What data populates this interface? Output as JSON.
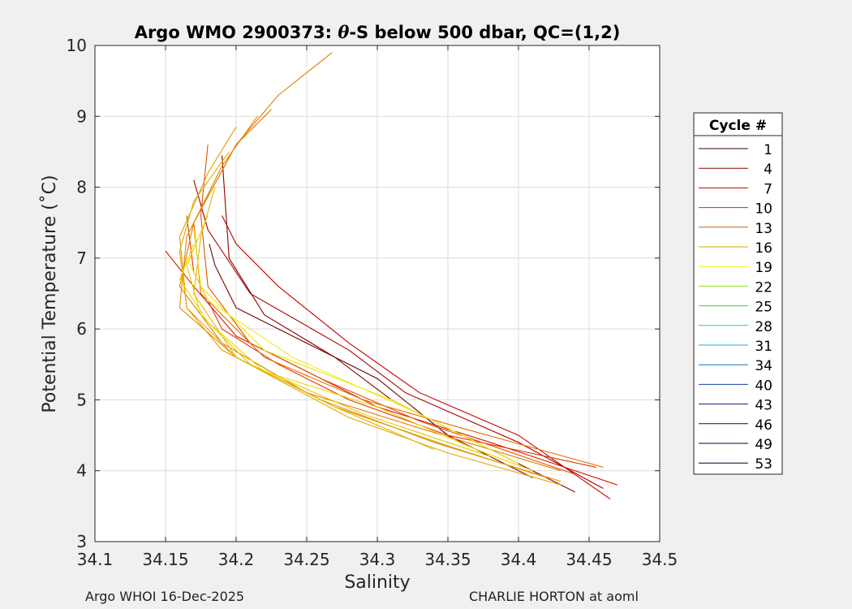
{
  "chart_data": {
    "type": "line",
    "title_prefix": "Argo WMO 2900373: ",
    "title_theta": "θ",
    "title_suffix": "-S below 500 dbar,  QC=(1,2)",
    "xlabel": "Salinity",
    "ylabel": "Potential Temperature (˚C)",
    "xlim": [
      34.1,
      34.5
    ],
    "ylim": [
      3,
      10
    ],
    "xticks": [
      "34.1",
      "34.15",
      "34.2",
      "34.25",
      "34.3",
      "34.35",
      "34.4",
      "34.45",
      "34.5"
    ],
    "yticks": [
      "3",
      "4",
      "5",
      "6",
      "7",
      "8",
      "9",
      "10"
    ],
    "grid": true,
    "legend_title": "Cycle #",
    "legend_position": "right",
    "series": [
      {
        "name": "1",
        "color": "#6e0000",
        "x": [
          34.181,
          34.185,
          34.2,
          34.26,
          34.3,
          34.35,
          34.41
        ],
        "y": [
          7.2,
          6.9,
          6.3,
          5.7,
          5.3,
          4.5,
          3.9
        ]
      },
      {
        "name": "4",
        "color": "#8c0000",
        "x": [
          34.19,
          34.195,
          34.22,
          34.27,
          34.31,
          34.37,
          34.44
        ],
        "y": [
          8.45,
          7.0,
          6.2,
          5.6,
          5.0,
          4.4,
          3.7
        ]
      },
      {
        "name": "7",
        "color": "#a80000",
        "x": [
          34.17,
          34.18,
          34.21,
          34.28,
          34.32,
          34.4,
          34.46
        ],
        "y": [
          8.1,
          7.4,
          6.5,
          5.7,
          5.1,
          4.4,
          3.75
        ]
      },
      {
        "name": "10",
        "color": "#c20000",
        "x": [
          34.19,
          34.2,
          34.23,
          34.28,
          34.33,
          34.4,
          34.465
        ],
        "y": [
          7.6,
          7.2,
          6.6,
          5.8,
          5.1,
          4.5,
          3.6
        ]
      },
      {
        "name": "13",
        "color": "#d81800",
        "x": [
          34.15,
          34.17,
          34.2,
          34.25,
          34.3,
          34.38,
          34.47
        ],
        "y": [
          7.1,
          6.6,
          5.9,
          5.4,
          4.9,
          4.4,
          3.8
        ]
      },
      {
        "name": "16",
        "color": "#e43600",
        "x": [
          34.165,
          34.17,
          34.19,
          34.23,
          34.28,
          34.35,
          34.455
        ],
        "y": [
          7.6,
          6.8,
          6.0,
          5.5,
          5.0,
          4.5,
          4.05
        ]
      },
      {
        "name": "19",
        "color": "#e45200",
        "x": [
          34.18,
          34.175,
          34.18,
          34.21,
          34.26,
          34.33,
          34.44
        ],
        "y": [
          8.6,
          7.6,
          6.6,
          5.8,
          5.3,
          4.7,
          3.95
        ]
      },
      {
        "name": "22",
        "color": "#e66c00",
        "x": [
          34.225,
          34.2,
          34.17,
          34.175,
          34.22,
          34.29,
          34.36,
          34.46
        ],
        "y": [
          9.1,
          8.6,
          7.5,
          6.5,
          5.6,
          5.0,
          4.6,
          4.05
        ]
      },
      {
        "name": "25",
        "color": "#e27a00",
        "x": [
          34.268,
          34.23,
          34.2,
          34.17,
          34.16,
          34.19,
          34.25,
          34.33,
          34.43
        ],
        "y": [
          9.9,
          9.3,
          8.6,
          7.5,
          6.6,
          5.8,
          5.1,
          4.6,
          4.0
        ]
      },
      {
        "name": "28",
        "color": "#e08a00",
        "x": [
          34.215,
          34.19,
          34.165,
          34.16,
          34.2,
          34.27,
          34.35,
          34.42
        ],
        "y": [
          9.0,
          8.3,
          7.3,
          6.3,
          5.6,
          4.9,
          4.35,
          3.9
        ]
      },
      {
        "name": "31",
        "color": "#e09a00",
        "x": [
          34.2,
          34.18,
          34.16,
          34.165,
          34.19,
          34.26,
          34.34,
          34.43
        ],
        "y": [
          8.85,
          8.2,
          7.3,
          6.3,
          5.7,
          5.0,
          4.4,
          3.85
        ]
      },
      {
        "name": "34",
        "color": "#e2aa00",
        "x": [
          34.195,
          34.17,
          34.16,
          34.165,
          34.2,
          34.28,
          34.35,
          34.43
        ],
        "y": [
          8.5,
          7.8,
          7.1,
          6.3,
          5.6,
          4.75,
          4.25,
          3.8
        ]
      },
      {
        "name": "40",
        "color": "#e4b800",
        "x": [
          34.185,
          34.175,
          34.17,
          34.2,
          34.27,
          34.34
        ],
        "y": [
          8.0,
          7.3,
          6.5,
          5.6,
          4.9,
          4.3
        ]
      },
      {
        "name": "43",
        "color": "#e6c800",
        "x": [
          34.18,
          34.165,
          34.175,
          34.21,
          34.29,
          34.38
        ],
        "y": [
          7.6,
          6.9,
          6.2,
          5.5,
          4.8,
          4.2
        ]
      },
      {
        "name": "46",
        "color": "#e8d800",
        "x": [
          34.17,
          34.16,
          34.18,
          34.22,
          34.3,
          34.37,
          34.41
        ],
        "y": [
          7.2,
          6.7,
          6.1,
          5.4,
          4.9,
          4.3,
          4.0
        ]
      },
      {
        "name": "49",
        "color": "#eae800",
        "x": [
          34.17,
          34.175,
          34.22,
          34.31,
          34.38
        ],
        "y": [
          7.4,
          6.6,
          5.7,
          5.0,
          4.3
        ]
      },
      {
        "name": "53",
        "color": "#ecec20",
        "x": [
          34.165,
          34.18,
          34.24,
          34.33,
          34.4
        ],
        "y": [
          7.0,
          6.4,
          5.6,
          4.8,
          4.1
        ]
      }
    ],
    "legend_colors": [
      "#3a0000",
      "#8c0000",
      "#c40000",
      "#d82800",
      "#d86000",
      "#e0a000",
      "#f0f000",
      "#90e020",
      "#40d040",
      "#20d0a0",
      "#10b0c8",
      "#1070c0",
      "#1040a0",
      "#102070",
      "#100858",
      "#080040",
      "#000030"
    ]
  },
  "footer": {
    "left": "Argo WHOI 16-Dec-2025",
    "right": "CHARLIE HORTON at aoml"
  }
}
